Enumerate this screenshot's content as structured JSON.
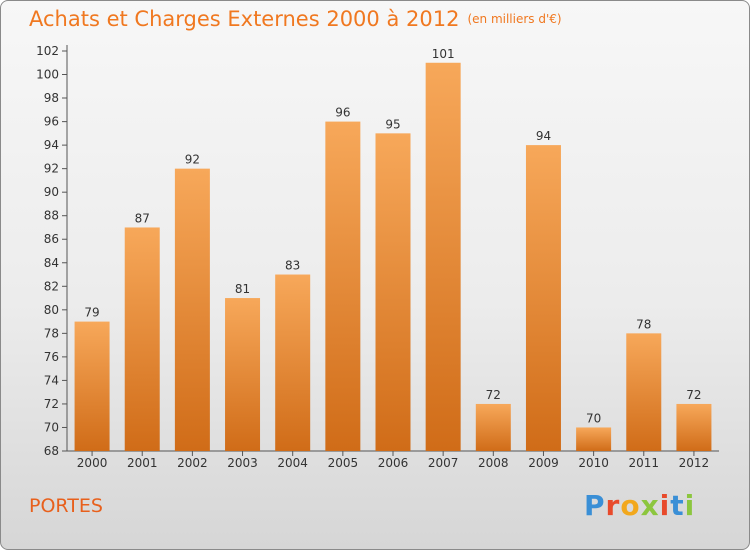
{
  "title": "Achats et Charges Externes 2000 à 2012",
  "title_unit": "(en milliers d'€)",
  "commune": "PORTES",
  "logo": {
    "text": "Proxiti",
    "letters": [
      {
        "ch": "P",
        "color": "#3a8fd6"
      },
      {
        "ch": "r",
        "color": "#e84a2b"
      },
      {
        "ch": "o",
        "color": "#f2a81d"
      },
      {
        "ch": "x",
        "color": "#8cc63e"
      },
      {
        "ch": "i",
        "color": "#e84a2b"
      },
      {
        "ch": "t",
        "color": "#3a8fd6"
      },
      {
        "ch": "i",
        "color": "#8cc63e"
      }
    ]
  },
  "colors": {
    "bar_top": "#f7a85a",
    "bar_bottom": "#d06c18",
    "title": "#f07820",
    "axis": "#555555"
  },
  "chart_data": {
    "type": "bar",
    "categories": [
      "2000",
      "2001",
      "2002",
      "2003",
      "2004",
      "2005",
      "2006",
      "2007",
      "2008",
      "2009",
      "2010",
      "2011",
      "2012"
    ],
    "values": [
      79,
      87,
      92,
      81,
      83,
      96,
      95,
      101,
      72,
      94,
      70,
      78,
      72
    ],
    "title": "Achats et Charges Externes 2000 à 2012",
    "xlabel": "",
    "ylabel": "",
    "ylim": [
      68,
      102
    ],
    "yticks": [
      68,
      70,
      72,
      74,
      76,
      78,
      80,
      82,
      84,
      86,
      88,
      90,
      92,
      94,
      96,
      98,
      100,
      102
    ],
    "grid": false,
    "legend": "none"
  }
}
